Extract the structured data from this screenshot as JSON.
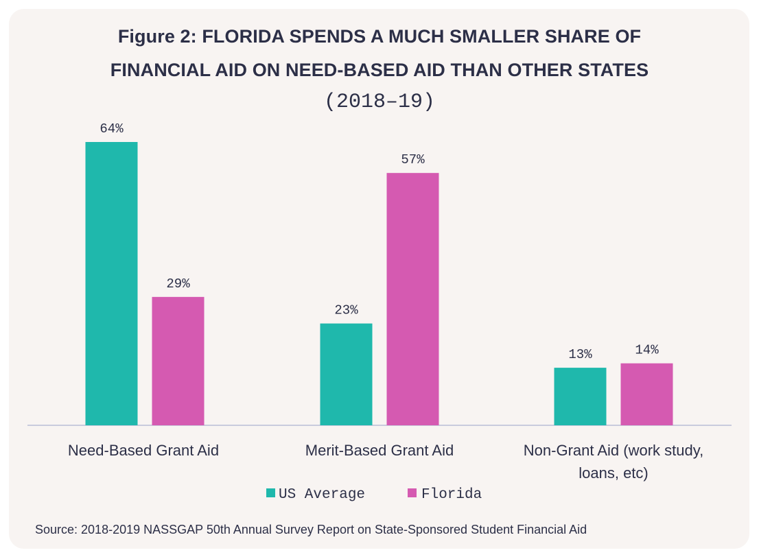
{
  "chart_data": {
    "type": "bar",
    "title": "Figure 2: FLORIDA SPENDS A MUCH SMALLER SHARE OF FINANCIAL AID ON NEED-BASED AID THAN OTHER STATES",
    "title_lines": [
      "Figure 2: FLORIDA SPENDS A MUCH SMALLER SHARE OF",
      "FINANCIAL AID ON NEED-BASED AID THAN OTHER STATES"
    ],
    "subtitle": "(2018–19)",
    "categories": [
      [
        "Need-Based Grant Aid"
      ],
      [
        "Merit-Based Grant Aid"
      ],
      [
        "Non-Grant Aid (work study,",
        "loans, etc)"
      ]
    ],
    "series": [
      {
        "name": "US Average",
        "color": "#1fb8ac",
        "values": [
          64,
          23,
          13
        ],
        "labels": [
          "64%",
          "23%",
          "13%"
        ]
      },
      {
        "name": "Florida",
        "color": "#d55ab1",
        "values": [
          29,
          57,
          14
        ],
        "labels": [
          "29%",
          "57%",
          "14%"
        ]
      }
    ],
    "ylim": [
      0,
      64
    ],
    "grid": false,
    "legend_position": "bottom",
    "axis_color": "#b9bdd6"
  },
  "source": "Source: 2018-2019 NASSGAP 50th Annual Survey Report on State-Sponsored Student Financial Aid",
  "colors": {
    "background": "#f8f4f2",
    "text": "#2c2f47"
  }
}
